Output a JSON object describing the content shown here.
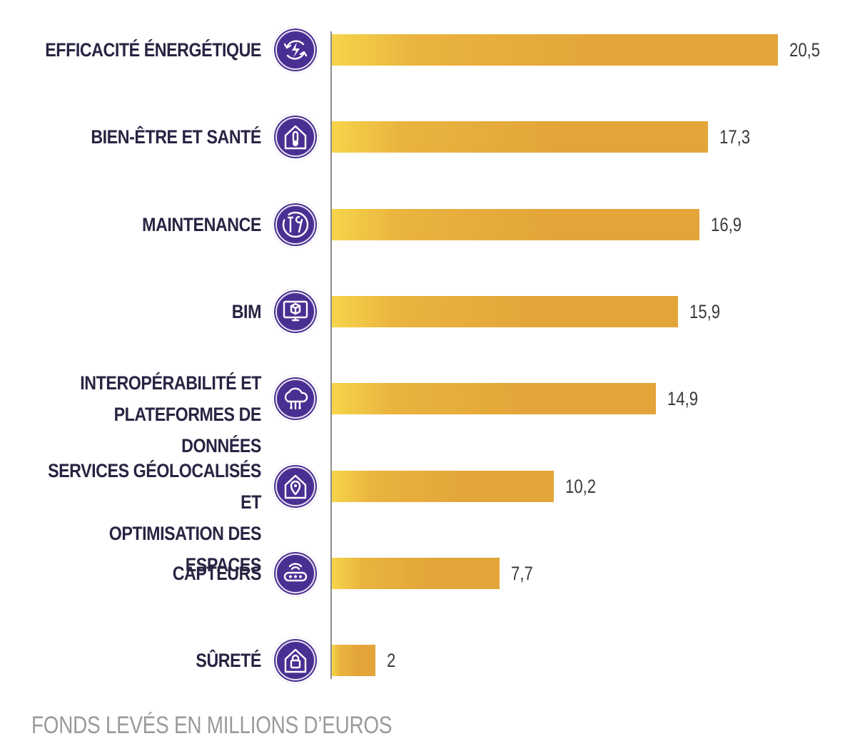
{
  "chart_data": {
    "type": "bar",
    "orientation": "horizontal",
    "title": "",
    "xlabel": "FONDS LEVÉS EN MILLIONS D’EUROS",
    "ylabel": "",
    "xlim": [
      0,
      20.5
    ],
    "grid": false,
    "legend": "none",
    "categories": [
      "EFFICACITÉ ÉNERGÉTIQUE",
      "BIEN-ÊTRE ET SANTÉ",
      "MAINTENANCE",
      "BIM",
      "INTEROPÉRABILITÉ ET\nPLATEFORMES DE DONNÉES",
      "SERVICES GÉOLOCALISÉS ET\nOPTIMISATION DES ESPACES",
      "CAPTEURS",
      "SÛRETÉ"
    ],
    "values": [
      20.5,
      17.3,
      16.9,
      15.9,
      14.9,
      10.2,
      7.7,
      2
    ],
    "value_labels": [
      "20,5",
      "17,3",
      "16,9",
      "15,9",
      "14,9",
      "10,2",
      "7,7",
      "2"
    ],
    "icons": [
      "energy-cycle-icon",
      "house-thermometer-icon",
      "tools-icon",
      "bim-monitor-icon",
      "cloud-network-icon",
      "house-location-icon",
      "sensor-icon",
      "house-lock-icon"
    ],
    "colors": {
      "bar_start": "#f6d54a",
      "bar_end": "#e3a53a",
      "icon_bg": "#4a2f93",
      "label": "#2a2342",
      "footnote": "#9a9a9a"
    }
  }
}
